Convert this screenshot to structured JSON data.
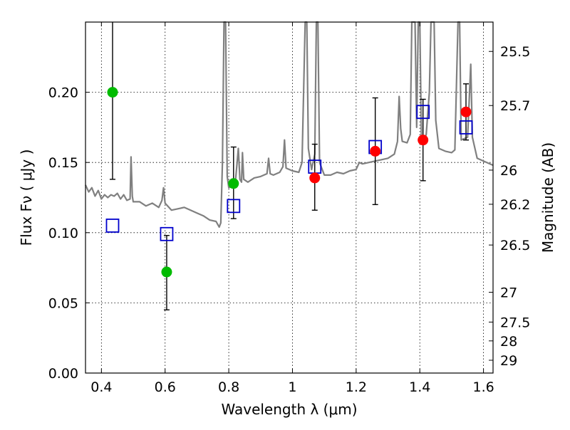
{
  "chart_data": {
    "type": "scatter",
    "title": "",
    "xlabel": "Wavelength  λ (μm)",
    "ylabel": "Flux  Fν  ( μJy )",
    "y2label": "Magnitude (AB)",
    "xlim": [
      0.35,
      1.63
    ],
    "ylim": [
      0.0,
      0.25
    ],
    "x_ticks": [
      {
        "value": 0.4,
        "label": "0.4"
      },
      {
        "value": 0.6,
        "label": "0.6"
      },
      {
        "value": 0.8,
        "label": "0.8"
      },
      {
        "value": 1.0,
        "label": "1"
      },
      {
        "value": 1.2,
        "label": "1.2"
      },
      {
        "value": 1.4,
        "label": "1.4"
      },
      {
        "value": 1.6,
        "label": "1.6"
      }
    ],
    "y_ticks": [
      {
        "value": 0.0,
        "label": "0.00"
      },
      {
        "value": 0.05,
        "label": "0.05"
      },
      {
        "value": 0.1,
        "label": "0.10"
      },
      {
        "value": 0.15,
        "label": "0.15"
      },
      {
        "value": 0.2,
        "label": "0.20"
      }
    ],
    "y2_ticks": [
      {
        "mag": 25.5,
        "label": "25.5"
      },
      {
        "mag": 25.7,
        "label": "25.7"
      },
      {
        "mag": 26.0,
        "label": "26"
      },
      {
        "mag": 26.2,
        "label": "26.2"
      },
      {
        "mag": 26.5,
        "label": "26.5"
      },
      {
        "mag": 27.0,
        "label": "27"
      },
      {
        "mag": 27.5,
        "label": "27.5"
      },
      {
        "mag": 28.0,
        "label": "28"
      },
      {
        "mag": 29.0,
        "label": "29"
      }
    ],
    "grid": true,
    "colors": {
      "model_spectrum": "#808080",
      "green_points": "#00bb00",
      "red_points": "#ff0000",
      "model_boxes": "#0000cc",
      "error_bars": "#000000"
    },
    "series": [
      {
        "kind": "line",
        "points": [
          [
            0.35,
            0.134
          ],
          [
            0.36,
            0.129
          ],
          [
            0.37,
            0.132
          ],
          [
            0.38,
            0.126
          ],
          [
            0.39,
            0.13
          ],
          [
            0.4,
            0.124
          ],
          [
            0.41,
            0.127
          ],
          [
            0.42,
            0.125
          ],
          [
            0.43,
            0.127
          ],
          [
            0.44,
            0.126
          ],
          [
            0.45,
            0.128
          ],
          [
            0.46,
            0.124
          ],
          [
            0.47,
            0.127
          ],
          [
            0.48,
            0.123
          ],
          [
            0.49,
            0.124
          ],
          [
            0.493,
            0.154
          ],
          [
            0.497,
            0.126
          ],
          [
            0.5,
            0.122
          ],
          [
            0.52,
            0.122
          ],
          [
            0.54,
            0.119
          ],
          [
            0.56,
            0.121
          ],
          [
            0.58,
            0.118
          ],
          [
            0.59,
            0.123
          ],
          [
            0.595,
            0.132
          ],
          [
            0.6,
            0.121
          ],
          [
            0.62,
            0.116
          ],
          [
            0.64,
            0.117
          ],
          [
            0.66,
            0.118
          ],
          [
            0.68,
            0.116
          ],
          [
            0.7,
            0.114
          ],
          [
            0.72,
            0.112
          ],
          [
            0.74,
            0.109
          ],
          [
            0.76,
            0.108
          ],
          [
            0.77,
            0.104
          ],
          [
            0.775,
            0.107
          ],
          [
            0.78,
            0.15
          ],
          [
            0.785,
            0.25
          ],
          [
            0.79,
            0.25
          ],
          [
            0.795,
            0.14
          ],
          [
            0.8,
            0.132
          ],
          [
            0.82,
            0.134
          ],
          [
            0.83,
            0.16
          ],
          [
            0.835,
            0.138
          ],
          [
            0.84,
            0.136
          ],
          [
            0.843,
            0.157
          ],
          [
            0.847,
            0.138
          ],
          [
            0.86,
            0.136
          ],
          [
            0.88,
            0.139
          ],
          [
            0.9,
            0.14
          ],
          [
            0.92,
            0.142
          ],
          [
            0.925,
            0.153
          ],
          [
            0.93,
            0.142
          ],
          [
            0.94,
            0.141
          ],
          [
            0.96,
            0.143
          ],
          [
            0.97,
            0.147
          ],
          [
            0.975,
            0.166
          ],
          [
            0.98,
            0.146
          ],
          [
            1.0,
            0.144
          ],
          [
            1.02,
            0.143
          ],
          [
            1.03,
            0.15
          ],
          [
            1.035,
            0.2
          ],
          [
            1.04,
            0.25
          ],
          [
            1.045,
            0.25
          ],
          [
            1.05,
            0.16
          ],
          [
            1.06,
            0.145
          ],
          [
            1.07,
            0.156
          ],
          [
            1.075,
            0.25
          ],
          [
            1.08,
            0.25
          ],
          [
            1.085,
            0.15
          ],
          [
            1.1,
            0.141
          ],
          [
            1.12,
            0.141
          ],
          [
            1.14,
            0.143
          ],
          [
            1.16,
            0.142
          ],
          [
            1.18,
            0.144
          ],
          [
            1.2,
            0.145
          ],
          [
            1.21,
            0.15
          ],
          [
            1.22,
            0.149
          ],
          [
            1.24,
            0.15
          ],
          [
            1.26,
            0.151
          ],
          [
            1.28,
            0.152
          ],
          [
            1.3,
            0.153
          ],
          [
            1.32,
            0.156
          ],
          [
            1.33,
            0.165
          ],
          [
            1.335,
            0.197
          ],
          [
            1.34,
            0.174
          ],
          [
            1.345,
            0.165
          ],
          [
            1.36,
            0.164
          ],
          [
            1.37,
            0.17
          ],
          [
            1.375,
            0.25
          ],
          [
            1.385,
            0.25
          ],
          [
            1.39,
            0.175
          ],
          [
            1.395,
            0.25
          ],
          [
            1.4,
            0.25
          ],
          [
            1.405,
            0.167
          ],
          [
            1.41,
            0.164
          ],
          [
            1.42,
            0.17
          ],
          [
            1.43,
            0.2
          ],
          [
            1.435,
            0.25
          ],
          [
            1.445,
            0.25
          ],
          [
            1.45,
            0.18
          ],
          [
            1.46,
            0.16
          ],
          [
            1.48,
            0.158
          ],
          [
            1.5,
            0.157
          ],
          [
            1.51,
            0.159
          ],
          [
            1.52,
            0.25
          ],
          [
            1.525,
            0.25
          ],
          [
            1.53,
            0.166
          ],
          [
            1.54,
            0.167
          ],
          [
            1.55,
            0.168
          ],
          [
            1.56,
            0.22
          ],
          [
            1.565,
            0.168
          ],
          [
            1.58,
            0.153
          ],
          [
            1.6,
            0.151
          ],
          [
            1.63,
            0.148
          ]
        ]
      },
      {
        "kind": "points",
        "points": [
          {
            "x": 0.435,
            "y": 0.2,
            "yerr_low": 0.138,
            "yerr_high": 0.25
          },
          {
            "x": 0.605,
            "y": 0.072,
            "yerr_low": 0.045,
            "yerr_high": 0.098
          },
          {
            "x": 0.815,
            "y": 0.135,
            "yerr_low": 0.11,
            "yerr_high": 0.161
          }
        ]
      },
      {
        "kind": "points",
        "points": [
          {
            "x": 1.07,
            "y": 0.139,
            "yerr_low": 0.116,
            "yerr_high": 0.163
          },
          {
            "x": 1.26,
            "y": 0.158,
            "yerr_low": 0.12,
            "yerr_high": 0.196
          },
          {
            "x": 1.41,
            "y": 0.166,
            "yerr_low": 0.137,
            "yerr_high": 0.195
          },
          {
            "x": 1.545,
            "y": 0.186,
            "yerr_low": 0.166,
            "yerr_high": 0.206
          }
        ]
      },
      {
        "kind": "boxes",
        "points": [
          {
            "x": 0.435,
            "y": 0.105
          },
          {
            "x": 0.605,
            "y": 0.099
          },
          {
            "x": 0.815,
            "y": 0.119
          },
          {
            "x": 1.07,
            "y": 0.147
          },
          {
            "x": 1.26,
            "y": 0.161
          },
          {
            "x": 1.41,
            "y": 0.186
          },
          {
            "x": 1.545,
            "y": 0.175
          }
        ]
      }
    ]
  }
}
